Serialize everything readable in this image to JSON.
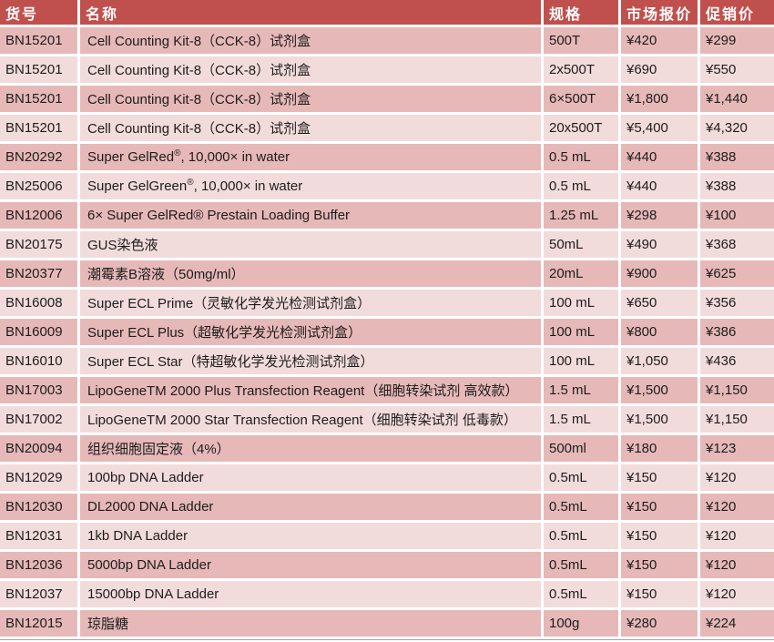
{
  "colors": {
    "header_bg": "#c0504d",
    "header_text": "#ffffff",
    "row_dark": "#e6b9b8",
    "row_light": "#f2dcdb",
    "body_text": "#1c1c1c",
    "border": "#ffffff",
    "bottom_rule": "#a3a3a3"
  },
  "table": {
    "headers": [
      "货号",
      "名称",
      "规格",
      "市场报价",
      "促销价"
    ],
    "rows": [
      {
        "code": "BN15201",
        "name": [
          {
            "text": "Cell Counting Kit-8（CCK-8）试剂盒"
          }
        ],
        "spec": "500T",
        "market": "¥420",
        "promo": "¥299"
      },
      {
        "code": "BN15201",
        "name": [
          {
            "text": "Cell Counting Kit-8（CCK-8）试剂盒"
          }
        ],
        "spec": "2x500T",
        "market": "¥690",
        "promo": "¥550"
      },
      {
        "code": "BN15201",
        "name": [
          {
            "text": "Cell Counting Kit-8（CCK-8）试剂盒"
          }
        ],
        "spec": "6×500T",
        "market": "¥1,800",
        "promo": "¥1,440"
      },
      {
        "code": "BN15201",
        "name": [
          {
            "text": "Cell Counting Kit-8（CCK-8）试剂盒"
          }
        ],
        "spec": "20x500T",
        "market": "¥5,400",
        "promo": "¥4,320"
      },
      {
        "code": "BN20292",
        "name": [
          {
            "text": "Super GelRed"
          },
          {
            "text": "®",
            "sup": true
          },
          {
            "text": ", 10,000× in water"
          }
        ],
        "spec": "0.5 mL",
        "market": "¥440",
        "promo": "¥388"
      },
      {
        "code": "BN25006",
        "name": [
          {
            "text": "Super GelGreen"
          },
          {
            "text": "®",
            "sup": true
          },
          {
            "text": ", 10,000× in water"
          }
        ],
        "spec": "0.5 mL",
        "market": "¥440",
        "promo": "¥388"
      },
      {
        "code": "BN12006",
        "name": [
          {
            "text": "6× Super GelRed® Prestain Loading Buffer"
          }
        ],
        "spec": "1.25 mL",
        "market": "¥298",
        "promo": "¥100"
      },
      {
        "code": "BN20175",
        "name": [
          {
            "text": "GUS染色液"
          }
        ],
        "spec": "50mL",
        "market": "¥490",
        "promo": "¥368"
      },
      {
        "code": "BN20377",
        "name": [
          {
            "text": "潮霉素B溶液（50mg/ml）"
          }
        ],
        "spec": "20mL",
        "market": "¥900",
        "promo": "¥625"
      },
      {
        "code": "BN16008",
        "name": [
          {
            "text": "Super ECL Prime（灵敏化学发光检测试剂盒）"
          }
        ],
        "spec": "100 mL",
        "market": "¥650",
        "promo": "¥356"
      },
      {
        "code": "BN16009",
        "name": [
          {
            "text": "Super ECL Plus（超敏化学发光检测试剂盒）"
          }
        ],
        "spec": "100 mL",
        "market": "¥800",
        "promo": "¥386"
      },
      {
        "code": "BN16010",
        "name": [
          {
            "text": "Super ECL Star（特超敏化学发光检测试剂盒）"
          }
        ],
        "spec": "100 mL",
        "market": "¥1,050",
        "promo": "¥436"
      },
      {
        "code": "BN17003",
        "name": [
          {
            "text": "LipoGeneTM 2000 Plus Transfection Reagent（细胞转染试剂 高效款）"
          }
        ],
        "spec": "1.5 mL",
        "market": "¥1,500",
        "promo": "¥1,150"
      },
      {
        "code": "BN17002",
        "name": [
          {
            "text": "LipoGeneTM 2000 Star Transfection Reagent（细胞转染试剂 低毒款）"
          }
        ],
        "spec": "1.5 mL",
        "market": "¥1,500",
        "promo": "¥1,150"
      },
      {
        "code": "BN20094",
        "name": [
          {
            "text": "组织细胞固定液（4%）"
          }
        ],
        "spec": "500ml",
        "market": "¥180",
        "promo": "¥123"
      },
      {
        "code": "BN12029",
        "name": [
          {
            "text": "100bp DNA Ladder"
          }
        ],
        "spec": "0.5mL",
        "market": "¥150",
        "promo": "¥120"
      },
      {
        "code": "BN12030",
        "name": [
          {
            "text": "DL2000 DNA Ladder"
          }
        ],
        "spec": "0.5mL",
        "market": "¥150",
        "promo": "¥120"
      },
      {
        "code": "BN12031",
        "name": [
          {
            "text": "1kb DNA Ladder"
          }
        ],
        "spec": "0.5mL",
        "market": "¥150",
        "promo": "¥120"
      },
      {
        "code": "BN12036",
        "name": [
          {
            "text": "5000bp DNA Ladder"
          }
        ],
        "spec": "0.5mL",
        "market": "¥150",
        "promo": "¥120"
      },
      {
        "code": "BN12037",
        "name": [
          {
            "text": "15000bp DNA Ladder"
          }
        ],
        "spec": "0.5mL",
        "market": "¥150",
        "promo": "¥120"
      },
      {
        "code": "BN12015",
        "name": [
          {
            "text": "琼脂糖"
          }
        ],
        "spec": "100g",
        "market": "¥280",
        "promo": "¥224"
      }
    ]
  }
}
